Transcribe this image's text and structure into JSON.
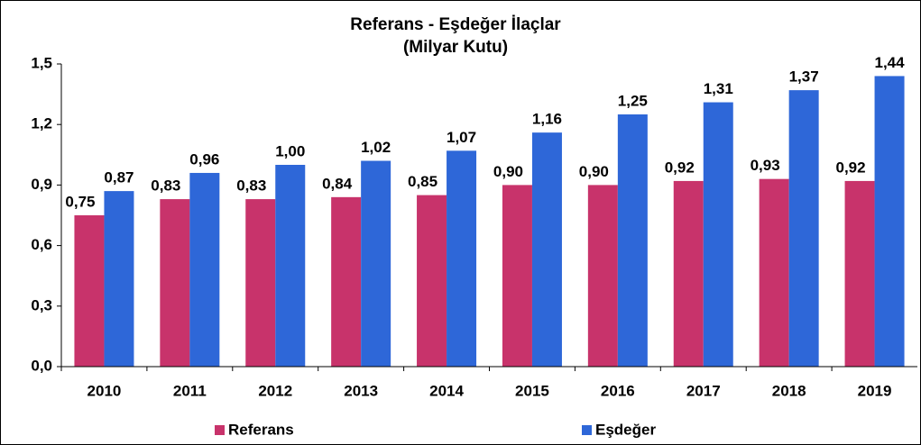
{
  "chart_data": {
    "type": "bar",
    "title": "Referans - Eşdeğer İlaçlar",
    "subtitle": "(Milyar Kutu)",
    "categories": [
      "2010",
      "2011",
      "2012",
      "2013",
      "2014",
      "2015",
      "2016",
      "2017",
      "2018",
      "2019"
    ],
    "series": [
      {
        "name": "Referans",
        "color": "#c8336b",
        "values": [
          0.75,
          0.83,
          0.83,
          0.84,
          0.85,
          0.9,
          0.9,
          0.92,
          0.93,
          0.92
        ],
        "value_labels": [
          "0,75",
          "0,83",
          "0,83",
          "0,84",
          "0,85",
          "0,90",
          "0,90",
          "0,92",
          "0,93",
          "0,92"
        ]
      },
      {
        "name": "Eşdeğer",
        "color": "#2e67d8",
        "values": [
          0.87,
          0.96,
          1.0,
          1.02,
          1.07,
          1.16,
          1.25,
          1.31,
          1.37,
          1.44
        ],
        "value_labels": [
          "0,87",
          "0,96",
          "1,00",
          "1,02",
          "1,07",
          "1,16",
          "1,25",
          "1,31",
          "1,37",
          "1,44"
        ]
      }
    ],
    "ylim": [
      0,
      1.5
    ],
    "yticks": [
      {
        "value": 0,
        "label": "0,0"
      },
      {
        "value": 0.3,
        "label": "0,3"
      },
      {
        "value": 0.6,
        "label": "0,6"
      },
      {
        "value": 0.9,
        "label": "0,9"
      },
      {
        "value": 1.2,
        "label": "1,2"
      },
      {
        "value": 1.5,
        "label": "1,5"
      }
    ],
    "grid": false,
    "legend": "bottom"
  }
}
